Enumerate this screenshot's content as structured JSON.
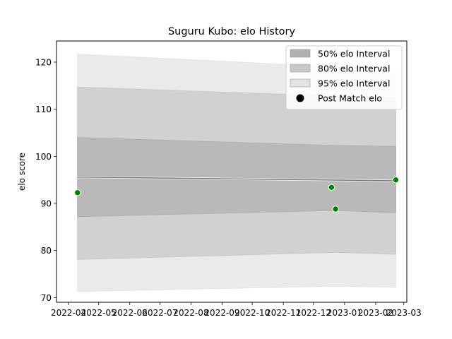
{
  "chart_data": {
    "type": "line",
    "title": "Suguru Kubo: elo History",
    "xlabel": "",
    "ylabel": "elo score",
    "x_ticks": [
      "2022-04",
      "2022-05",
      "2022-06",
      "2022-07",
      "2022-08",
      "2022-09",
      "2022-10",
      "2022-11",
      "2022-12",
      "2023-01",
      "2023-02",
      "2023-03"
    ],
    "y_ticks": [
      70,
      80,
      90,
      100,
      110,
      120
    ],
    "xlim": [
      "2022-03-20",
      "2023-03-04"
    ],
    "ylim": [
      69,
      124.5
    ],
    "grid": false,
    "legend_position": "top-right",
    "series": [
      {
        "name": "",
        "kind": "line",
        "color": "#777777",
        "x": [
          "2022-04-10",
          "2023-02-21"
        ],
        "y": [
          95.6,
          94.8
        ]
      },
      {
        "name": "50% elo Interval",
        "kind": "band",
        "color": "#b0b0b0",
        "x": [
          "2022-04-10",
          "2022-12-23",
          "2023-02-21"
        ],
        "lower": [
          87.2,
          88.5,
          88.0
        ],
        "upper": [
          104.0,
          102.3,
          102.1
        ]
      },
      {
        "name": "80% elo Interval",
        "kind": "band",
        "color": "#c8c8c8",
        "x": [
          "2022-04-10",
          "2022-12-23",
          "2023-02-21"
        ],
        "lower": [
          78.1,
          79.6,
          79.2
        ],
        "upper": [
          114.7,
          112.8,
          112.5
        ]
      },
      {
        "name": "95% elo Interval",
        "kind": "band",
        "color": "#e3e3e3",
        "x": [
          "2022-04-10",
          "2022-12-23",
          "2023-02-21"
        ],
        "lower": [
          71.3,
          72.4,
          72.2
        ],
        "upper": [
          121.7,
          119.0,
          118.5
        ]
      },
      {
        "name": "Post Match elo",
        "kind": "scatter",
        "color": "#008000",
        "x": [
          "2022-04-10",
          "2022-12-19",
          "2022-12-23",
          "2023-02-21"
        ],
        "y": [
          92.3,
          93.4,
          88.8,
          95.0
        ]
      }
    ]
  }
}
